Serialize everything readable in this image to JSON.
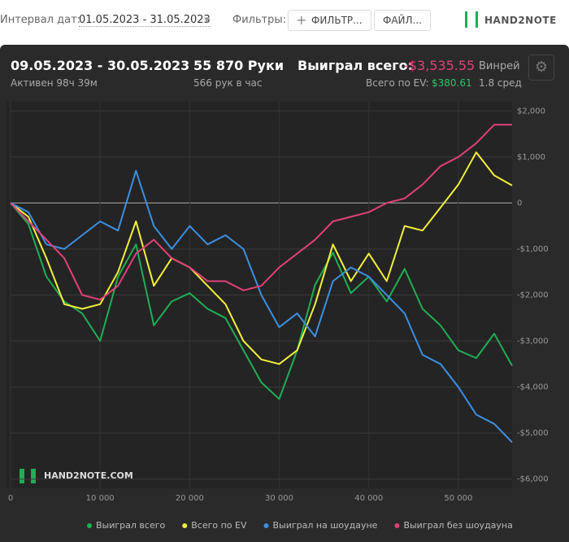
{
  "topbar": {
    "date_label": "Интервал дат:",
    "date_range": "01.05.2023 - 31.05.2023",
    "filters_label": "Фильтры:",
    "filter_button": "ФИЛЬТР...",
    "file_button": "ФАЙЛ...",
    "logo": "HAND2NOTE"
  },
  "summary": {
    "period": "09.05.2023 - 30.05.2023",
    "active": "Активен 98ч 39м",
    "hands": "55 870 Руки",
    "hands_per_hour": "566 рук в час",
    "won_label": "Выиграл всего:",
    "won_value": "-$3,535.55",
    "ev_label": "Всего по EV:",
    "ev_value": "$380.61",
    "winrate_label": "Винрей",
    "winrate_value": "1.8 сред"
  },
  "watermark": "HAND2NOTE.COM",
  "chart_data": {
    "type": "line",
    "x": [
      0,
      2000,
      4000,
      6000,
      8000,
      10000,
      12000,
      14000,
      16000,
      18000,
      20000,
      22000,
      24000,
      26000,
      28000,
      30000,
      32000,
      34000,
      36000,
      38000,
      40000,
      42000,
      44000,
      46000,
      48000,
      50000,
      52000,
      54000,
      56000
    ],
    "series": [
      {
        "name": "Выиграл всего",
        "color": "#1fae55",
        "values": [
          0,
          -460,
          -1600,
          -2140,
          -2400,
          -3000,
          -1600,
          -900,
          -2660,
          -2140,
          -1960,
          -2300,
          -2500,
          -3200,
          -3900,
          -4260,
          -3200,
          -1780,
          -1080,
          -1960,
          -1600,
          -2140,
          -1430,
          -2300,
          -2660,
          -3200,
          -3370,
          -2840,
          -3536
        ]
      },
      {
        "name": "Всего по EV",
        "color": "#f2f03a",
        "values": [
          0,
          -300,
          -1200,
          -2200,
          -2300,
          -2200,
          -1500,
          -400,
          -1800,
          -1200,
          -1400,
          -1800,
          -2200,
          -3000,
          -3400,
          -3500,
          -3200,
          -2200,
          -900,
          -1700,
          -1100,
          -1700,
          -500,
          -600,
          -100,
          400,
          1100,
          600,
          381
        ]
      },
      {
        "name": "Выиграл на шоудауне",
        "color": "#3d8fe0",
        "values": [
          0,
          -200,
          -900,
          -1000,
          -700,
          -400,
          -600,
          700,
          -500,
          -1000,
          -500,
          -900,
          -700,
          -1000,
          -2000,
          -2700,
          -2400,
          -2900,
          -1700,
          -1400,
          -1600,
          -2000,
          -2400,
          -3300,
          -3500,
          -4000,
          -4600,
          -4800,
          -5200
        ]
      },
      {
        "name": "Выиграл без шоудауна",
        "color": "#e0407a",
        "values": [
          0,
          -400,
          -800,
          -1200,
          -2000,
          -2100,
          -1800,
          -1100,
          -800,
          -1200,
          -1400,
          -1700,
          -1700,
          -1900,
          -1800,
          -1400,
          -1100,
          -800,
          -400,
          -300,
          -200,
          0,
          100,
          400,
          800,
          1000,
          1300,
          1700,
          1700
        ]
      }
    ],
    "xlim": [
      0,
      56000
    ],
    "xticks": [
      0,
      {
        "value": 10000,
        "label": "10 000"
      },
      {
        "value": 20000,
        "label": "20 000"
      },
      {
        "value": 30000,
        "label": "30 000"
      },
      {
        "value": 40000,
        "label": "40 000"
      },
      {
        "value": 50000,
        "label": "50 000"
      }
    ],
    "ylim": [
      -6200,
      2200
    ],
    "yticks": [
      {
        "value": 2000,
        "label": "$2,000"
      },
      {
        "value": 1000,
        "label": "$1,000"
      },
      0,
      {
        "value": -1000,
        "label": "-$1,000"
      },
      {
        "value": -2000,
        "label": "-$2,000"
      },
      {
        "value": -3000,
        "label": "-$3,000"
      },
      {
        "value": -4000,
        "label": "-$4,000"
      },
      {
        "value": -5000,
        "label": "-$5,000"
      },
      {
        "value": -6000,
        "label": "-$6,000"
      }
    ],
    "grid": true
  }
}
